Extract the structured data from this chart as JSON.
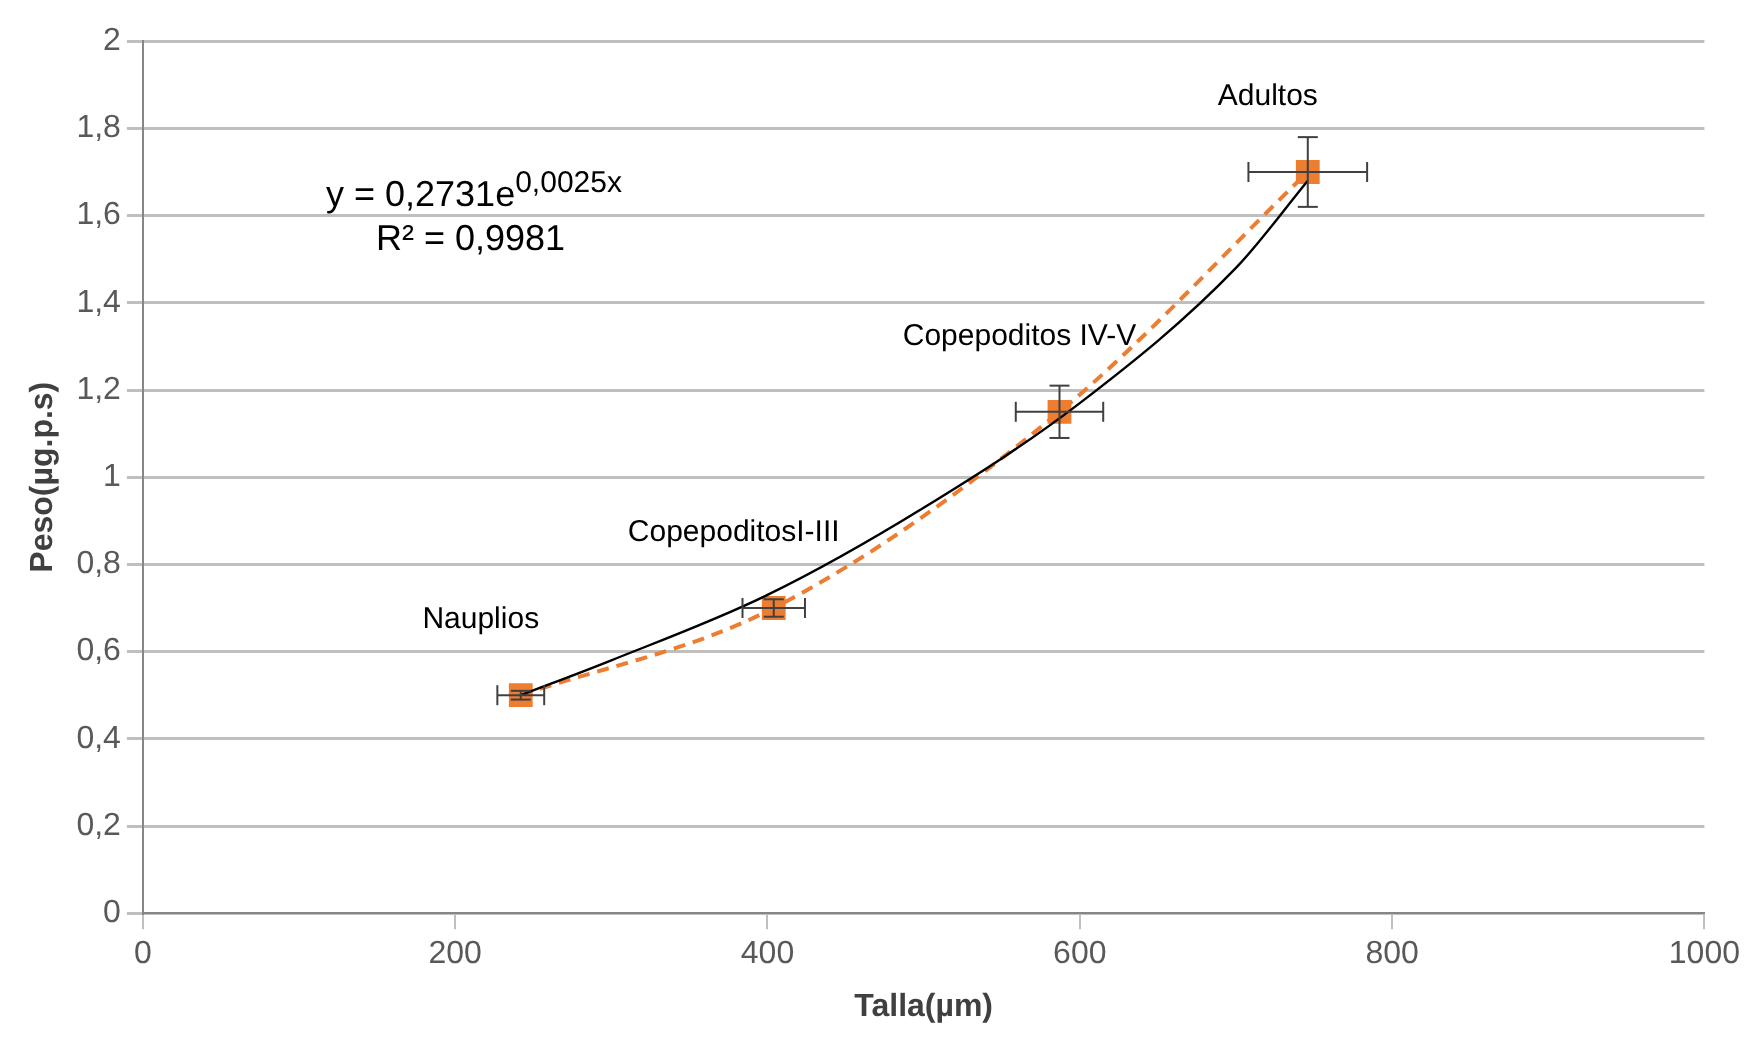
{
  "chart_data": {
    "type": "line",
    "xlabel": "Talla(µm)",
    "ylabel": "Peso(µg.p.s)",
    "xlim": [
      0,
      1000
    ],
    "xticks": [
      0,
      200,
      400,
      600,
      800,
      1000
    ],
    "ylim": [
      0,
      2
    ],
    "yticks": [
      {
        "value": 0,
        "label": "0"
      },
      {
        "value": 0.2,
        "label": "0,2"
      },
      {
        "value": 0.4,
        "label": "0,4"
      },
      {
        "value": 0.6,
        "label": "0,6"
      },
      {
        "value": 0.8,
        "label": "0,8"
      },
      {
        "value": 1,
        "label": "1"
      },
      {
        "value": 1.2,
        "label": "1,2"
      },
      {
        "value": 1.4,
        "label": "1,4"
      },
      {
        "value": 1.6,
        "label": "1,6"
      },
      {
        "value": 1.8,
        "label": "1,8"
      },
      {
        "value": 2,
        "label": "2"
      }
    ],
    "grid": "y",
    "legend": false,
    "series": [
      {
        "type": "line",
        "color": "#000000",
        "marker": "none",
        "line_style": "solid",
        "x": [
          242,
          300,
          400,
          500,
          600,
          700,
          746
        ],
        "values": [
          0.5,
          0.58,
          0.73,
          0.93,
          1.17,
          1.48,
          1.68
        ]
      },
      {
        "type": "line",
        "color": "#ed7d31",
        "marker": "square",
        "line_style": "dashed",
        "x": [
          242,
          404,
          587,
          746
        ],
        "values": [
          0.5,
          0.7,
          1.15,
          1.7
        ],
        "errors": [
          0.01,
          0.02,
          0.06,
          0.08
        ],
        "xerrors": [
          15,
          20,
          28,
          38
        ]
      }
    ],
    "annotations": [
      {
        "text": "Nauplios",
        "x": 242,
        "y": 0.5
      },
      {
        "text": "CopepoditosI-III",
        "x": 404,
        "y": 0.7
      },
      {
        "text": "Copepoditos IV-V",
        "x": 587,
        "y": 1.15
      },
      {
        "text": "Adultos",
        "x": 746,
        "y": 1.7
      },
      "y = 0,2731e$^{0,0025x}$",
      "R² = 0,9981"
    ]
  }
}
